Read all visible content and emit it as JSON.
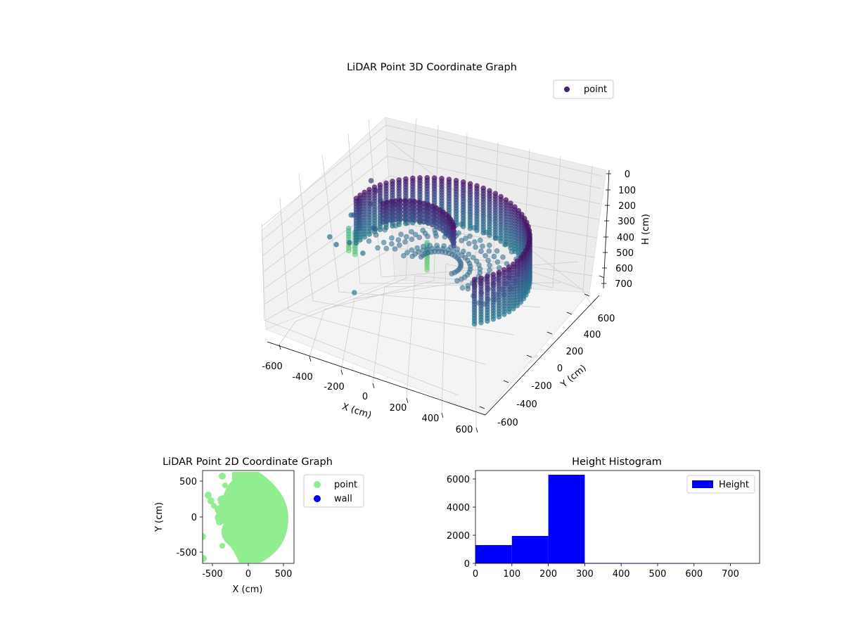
{
  "chart_data": [
    {
      "type": "scatter",
      "projection": "3d",
      "title": "LiDAR Point 3D Coordinate Graph",
      "xlabel": "X (cm)",
      "ylabel": "Y (cm)",
      "zlabel": "H (cm)",
      "xlim": [
        -650,
        650
      ],
      "ylim": [
        -650,
        650
      ],
      "zlim": [
        770,
        0
      ],
      "xticks": [
        -600,
        -400,
        -200,
        0,
        200,
        400,
        600
      ],
      "yticks": [
        -600,
        -400,
        -200,
        0,
        200,
        400,
        600
      ],
      "zticks": [
        0,
        100,
        200,
        300,
        400,
        500,
        600,
        700
      ],
      "z_axis_inverted": true,
      "colormap": "viridis (colored by height)",
      "grid": true,
      "legend": {
        "position": "top-right",
        "entries": [
          {
            "label": "point",
            "color": "#46237a"
          }
        ]
      },
      "series": [
        {
          "name": "point",
          "description": "dense curved wall of points (radius ~450-600 cm) spanning heights ~30-320 cm, sparse points up to ~700 cm near x≈-600"
        }
      ]
    },
    {
      "type": "scatter",
      "title": "LiDAR Point 2D Coordinate Graph",
      "xlabel": "X (cm)",
      "ylabel": "Y (cm)",
      "xlim": [
        -650,
        650
      ],
      "ylim": [
        -650,
        650
      ],
      "xticks": [
        -500,
        0,
        500
      ],
      "yticks": [
        -500,
        0,
        500
      ],
      "legend": {
        "position": "outside-right",
        "entries": [
          {
            "label": "point",
            "color": "#90ee90"
          },
          {
            "label": "wall",
            "color": "#0000ff"
          }
        ]
      }
    },
    {
      "type": "bar",
      "subtype": "histogram",
      "title": "Height Histogram",
      "xlim": [
        0,
        780
      ],
      "ylim": [
        0,
        6600
      ],
      "xticks": [
        0,
        100,
        200,
        300,
        400,
        500,
        600,
        700
      ],
      "yticks": [
        0,
        2000,
        4000,
        6000
      ],
      "color": "#0000ff",
      "legend": {
        "position": "top-right",
        "entries": [
          {
            "label": "Height",
            "color": "#0000ff"
          }
        ]
      },
      "bins": [
        {
          "start": 0,
          "end": 100,
          "count": 1300
        },
        {
          "start": 100,
          "end": 200,
          "count": 1950
        },
        {
          "start": 200,
          "end": 300,
          "count": 6300
        },
        {
          "start": 300,
          "end": 400,
          "count": 30
        },
        {
          "start": 400,
          "end": 500,
          "count": 20
        },
        {
          "start": 500,
          "end": 600,
          "count": 15
        },
        {
          "start": 600,
          "end": 700,
          "count": 0
        },
        {
          "start": 700,
          "end": 780,
          "count": 0
        }
      ]
    }
  ]
}
